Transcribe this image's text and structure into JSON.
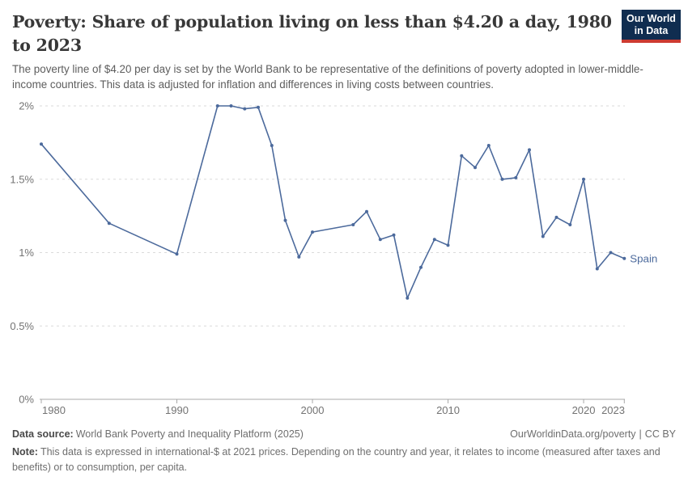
{
  "header": {
    "title": "Poverty: Share of population living on less than $4.20 a day, 1980 to 2023",
    "subtitle": "The poverty line of $4.20 per day is set by the World Bank to be representative of the definitions of poverty adopted in lower-middle-income countries. This data is adjusted for inflation and differences in living costs between countries.",
    "logo": {
      "line1": "Our World",
      "line2": "in Data",
      "bg_color": "#102d50",
      "accent_color": "#cd3b31"
    }
  },
  "chart_data": {
    "type": "line",
    "title": "Poverty: Share of population living on less than $4.20 a day, 1980 to 2023",
    "xlabel": "",
    "ylabel": "",
    "xlim": [
      1980,
      2023
    ],
    "ylim": [
      0,
      2
    ],
    "y_unit": "%",
    "grid": "horizontal-dashed",
    "legend_position": "end-of-line-label",
    "x_ticks": [
      {
        "year": 1980,
        "label": "1980"
      },
      {
        "year": 1990,
        "label": "1990"
      },
      {
        "year": 2000,
        "label": "2000"
      },
      {
        "year": 2010,
        "label": "2010"
      },
      {
        "year": 2020,
        "label": "2020"
      },
      {
        "year": 2023,
        "label": "2023"
      }
    ],
    "y_ticks": [
      {
        "value": 0,
        "label": "0%"
      },
      {
        "value": 0.5,
        "label": "0.5%"
      },
      {
        "value": 1,
        "label": "1%"
      },
      {
        "value": 1.5,
        "label": "1.5%"
      },
      {
        "value": 2,
        "label": "2%"
      }
    ],
    "series": [
      {
        "name": "Spain",
        "color": "#4C6A9C",
        "points": [
          {
            "year": 1980,
            "value": 1.74
          },
          {
            "year": 1985,
            "value": 1.2
          },
          {
            "year": 1990,
            "value": 0.99
          },
          {
            "year": 1993,
            "value": 2.0
          },
          {
            "year": 1994,
            "value": 2.0
          },
          {
            "year": 1995,
            "value": 1.98
          },
          {
            "year": 1996,
            "value": 1.99
          },
          {
            "year": 1997,
            "value": 1.73
          },
          {
            "year": 1998,
            "value": 1.22
          },
          {
            "year": 1999,
            "value": 0.97
          },
          {
            "year": 2000,
            "value": 1.14
          },
          {
            "year": 2003,
            "value": 1.19
          },
          {
            "year": 2004,
            "value": 1.28
          },
          {
            "year": 2005,
            "value": 1.09
          },
          {
            "year": 2006,
            "value": 1.12
          },
          {
            "year": 2007,
            "value": 0.69
          },
          {
            "year": 2008,
            "value": 0.9
          },
          {
            "year": 2009,
            "value": 1.09
          },
          {
            "year": 2010,
            "value": 1.05
          },
          {
            "year": 2011,
            "value": 1.66
          },
          {
            "year": 2012,
            "value": 1.58
          },
          {
            "year": 2013,
            "value": 1.73
          },
          {
            "year": 2014,
            "value": 1.5
          },
          {
            "year": 2015,
            "value": 1.51
          },
          {
            "year": 2016,
            "value": 1.7
          },
          {
            "year": 2017,
            "value": 1.11
          },
          {
            "year": 2018,
            "value": 1.24
          },
          {
            "year": 2019,
            "value": 1.19
          },
          {
            "year": 2020,
            "value": 1.5
          },
          {
            "year": 2021,
            "value": 0.89
          },
          {
            "year": 2022,
            "value": 1.0
          },
          {
            "year": 2023,
            "value": 0.96
          }
        ]
      }
    ]
  },
  "footer": {
    "data_source_label": "Data source:",
    "data_source_text": "World Bank Poverty and Inequality Platform (2025)",
    "url": "OurWorldinData.org/poverty",
    "separator": "|",
    "license": "CC BY",
    "note_label": "Note:",
    "note_text": "This data is expressed in international-$ at 2021 prices. Depending on the country and year, it relates to income (measured after taxes and benefits) or to consumption, per capita."
  }
}
